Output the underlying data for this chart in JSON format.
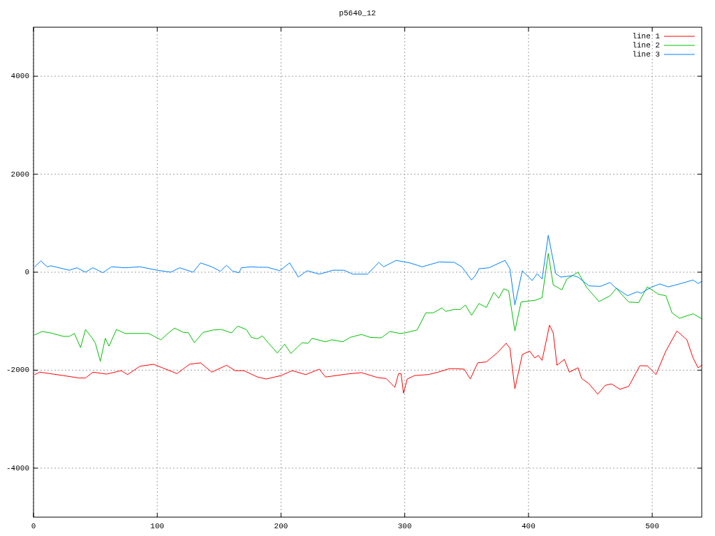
{
  "chart_data": {
    "type": "line",
    "title": "p5640_12",
    "xlim": [
      0,
      540
    ],
    "xticks": [
      0,
      100,
      200,
      300,
      400,
      500
    ],
    "ylim": [
      -5000,
      5000
    ],
    "yticks": [
      -4000,
      -2000,
      0,
      2000,
      4000
    ],
    "grid": true,
    "legend": "top right",
    "line_style": "solid",
    "marker": "none",
    "series": [
      {
        "name": "line 1",
        "color": "#ff0000",
        "x": [
          1,
          5,
          24,
          37,
          42,
          48,
          59,
          71,
          76,
          86,
          97,
          104,
          116,
          126,
          135,
          144,
          156,
          163,
          170,
          181,
          188,
          200,
          209,
          220,
          231,
          236,
          253,
          265,
          278,
          285,
          292,
          295,
          297,
          299,
          302,
          308,
          319,
          327,
          336,
          341,
          348,
          353,
          359,
          366,
          375,
          382,
          385,
          389,
          395,
          401,
          405,
          408,
          411,
          417,
          420,
          423,
          429,
          433,
          440,
          443,
          449,
          456,
          462,
          467,
          474,
          481,
          490,
          496,
          503,
          511,
          520,
          528,
          533,
          537,
          540
        ],
        "values": [
          -2090,
          -2040,
          -2110,
          -2160,
          -2160,
          -2040,
          -2080,
          -2010,
          -2090,
          -1920,
          -1880,
          -1950,
          -2070,
          -1880,
          -1850,
          -2040,
          -1900,
          -2010,
          -2010,
          -2140,
          -2180,
          -2110,
          -2010,
          -2090,
          -1980,
          -2140,
          -2080,
          -2050,
          -2150,
          -2170,
          -2350,
          -2070,
          -2070,
          -2470,
          -2180,
          -2110,
          -2090,
          -2040,
          -1970,
          -1970,
          -1980,
          -2180,
          -1850,
          -1830,
          -1640,
          -1450,
          -1550,
          -2380,
          -1680,
          -1610,
          -1750,
          -1700,
          -1800,
          -1080,
          -1240,
          -1900,
          -1780,
          -2040,
          -1950,
          -2170,
          -2280,
          -2490,
          -2310,
          -2280,
          -2390,
          -2330,
          -1910,
          -1910,
          -2090,
          -1610,
          -1200,
          -1380,
          -1750,
          -1950,
          -1900
        ]
      },
      {
        "name": "line 2",
        "color": "#00c000",
        "x": [
          1,
          7,
          14,
          24,
          29,
          33,
          38,
          42,
          47,
          50,
          54,
          58,
          61,
          67,
          74,
          84,
          93,
          103,
          109,
          114,
          121,
          125,
          130,
          137,
          145,
          152,
          160,
          165,
          172,
          176,
          181,
          185,
          190,
          197,
          203,
          208,
          217,
          222,
          225,
          236,
          241,
          250,
          256,
          265,
          272,
          281,
          288,
          296,
          300,
          310,
          317,
          323,
          330,
          333,
          340,
          345,
          349,
          354,
          360,
          366,
          372,
          376,
          380,
          384,
          389,
          394,
          406,
          411,
          416,
          420,
          427,
          431,
          440,
          447,
          457,
          466,
          471,
          481,
          489,
          496,
          505,
          511,
          516,
          522,
          533,
          540
        ],
        "values": [
          -1280,
          -1210,
          -1240,
          -1310,
          -1310,
          -1250,
          -1540,
          -1170,
          -1330,
          -1450,
          -1820,
          -1350,
          -1510,
          -1170,
          -1250,
          -1250,
          -1250,
          -1380,
          -1240,
          -1140,
          -1230,
          -1230,
          -1440,
          -1230,
          -1180,
          -1170,
          -1240,
          -1100,
          -1170,
          -1330,
          -1360,
          -1300,
          -1450,
          -1650,
          -1470,
          -1660,
          -1440,
          -1450,
          -1350,
          -1420,
          -1380,
          -1420,
          -1330,
          -1270,
          -1330,
          -1340,
          -1210,
          -1250,
          -1240,
          -1180,
          -830,
          -830,
          -730,
          -800,
          -760,
          -760,
          -670,
          -880,
          -640,
          -720,
          -410,
          -530,
          -340,
          -380,
          -1200,
          -610,
          -570,
          -520,
          385,
          -260,
          -360,
          -140,
          0,
          -310,
          -600,
          -480,
          -330,
          -610,
          -620,
          -300,
          -450,
          -480,
          -830,
          -940,
          -850,
          -950
        ]
      },
      {
        "name": "line 3",
        "color": "#0080ff",
        "x": [
          1,
          6,
          11,
          14,
          29,
          35,
          42,
          48,
          56,
          63,
          74,
          86,
          100,
          111,
          118,
          129,
          135,
          144,
          151,
          156,
          161,
          166,
          168,
          176,
          182,
          189,
          199,
          207,
          214,
          221,
          231,
          242,
          251,
          258,
          270,
          279,
          283,
          293,
          304,
          314,
          328,
          340,
          346,
          354,
          357,
          360,
          368,
          381,
          385,
          389,
          395,
          403,
          407,
          411,
          416,
          422,
          426,
          436,
          440,
          449,
          458,
          466,
          470,
          480,
          488,
          491,
          499,
          506,
          513,
          522,
          533,
          537,
          540
        ],
        "values": [
          110,
          230,
          110,
          130,
          40,
          90,
          0,
          90,
          -10,
          110,
          90,
          110,
          40,
          0,
          90,
          0,
          190,
          110,
          20,
          140,
          20,
          -10,
          90,
          110,
          100,
          100,
          30,
          190,
          -100,
          30,
          -40,
          40,
          40,
          -40,
          -40,
          200,
          110,
          240,
          190,
          110,
          210,
          200,
          110,
          -160,
          -70,
          70,
          90,
          240,
          70,
          -670,
          30,
          -170,
          -30,
          -140,
          755,
          -30,
          -100,
          -70,
          -100,
          -280,
          -290,
          -210,
          -310,
          -480,
          -400,
          -430,
          -310,
          -240,
          -300,
          -240,
          -160,
          -230,
          -190
        ]
      }
    ]
  }
}
